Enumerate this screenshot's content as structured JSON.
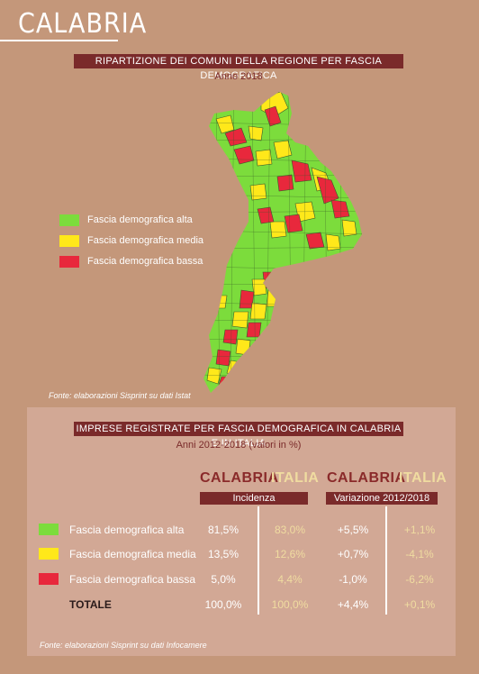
{
  "region_title": "CALABRIA",
  "map_section": {
    "banner": "RIPARTIZIONE DEI COMUNI DELLA REGIONE PER FASCIA DEMOGRAFICA",
    "year": "Anno 2018",
    "legend": [
      {
        "label": "Fascia demografica alta",
        "color": "#7cdc3c"
      },
      {
        "label": "Fascia demografica media",
        "color": "#ffe81a"
      },
      {
        "label": "Fascia demografica bassa",
        "color": "#e8283c"
      }
    ],
    "source": "Fonte: elaborazioni Sisprint su dati Istat"
  },
  "table_section": {
    "banner": "IMPRESE REGISTRATE PER FASCIA DEMOGRAFICA IN CALABRIA E IN ITALIA",
    "years": "Anni 2012-2018 (valori in %)",
    "columns": [
      "CALABRIA",
      "ITALIA",
      "CALABRIA",
      "ITALIA"
    ],
    "groups": [
      "Incidenza",
      "Variazione 2012/2018"
    ],
    "rows": [
      {
        "label": "Fascia demografica alta",
        "color": "#7cdc3c",
        "values": [
          "81,5%",
          "83,0%",
          "+5,5%",
          "+1,1%"
        ]
      },
      {
        "label": "Fascia demografica media",
        "color": "#ffe81a",
        "values": [
          "13,5%",
          "12,6%",
          "+0,7%",
          "-4,1%"
        ]
      },
      {
        "label": "Fascia demografica bassa",
        "color": "#e8283c",
        "values": [
          "5,0%",
          "4,4%",
          "-1,0%",
          "-6,2%"
        ]
      }
    ],
    "total": {
      "label": "TOTALE",
      "values": [
        "100,0%",
        "100,0%",
        "+4,4%",
        "+0,1%"
      ]
    },
    "source": "Fonte: elaborazioni Sisprint su dati Infocamere"
  },
  "colors": {
    "background": "#c4977a",
    "panel": "#d2a895",
    "banner": "#7a2a2a",
    "accent_region": "#8a2a2a",
    "accent_italy": "#f0dca0"
  }
}
